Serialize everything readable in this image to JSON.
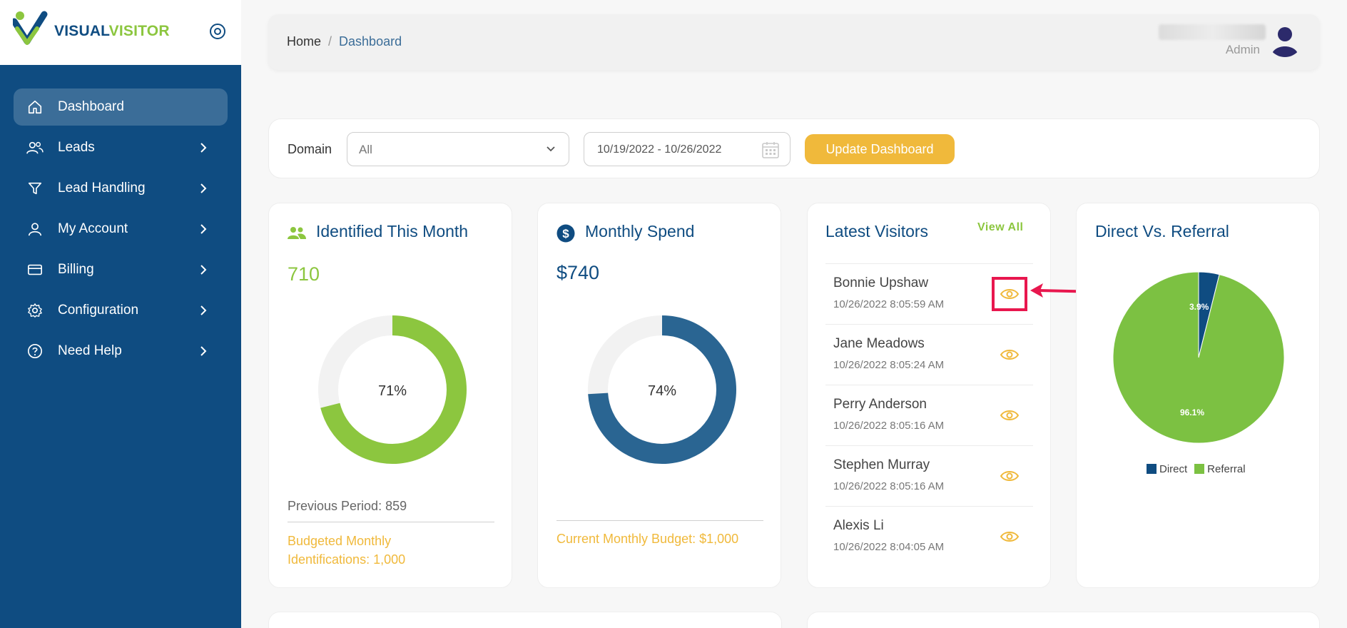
{
  "brand": {
    "name_part1": "VISUAL",
    "name_part2": "VISITOR"
  },
  "sidebar": {
    "items": [
      {
        "label": "Dashboard",
        "icon": "home-icon"
      },
      {
        "label": "Leads",
        "icon": "users-icon"
      },
      {
        "label": "Lead Handling",
        "icon": "filter-icon"
      },
      {
        "label": "My Account",
        "icon": "user-icon"
      },
      {
        "label": "Billing",
        "icon": "card-icon"
      },
      {
        "label": "Configuration",
        "icon": "gear-icon"
      },
      {
        "label": "Need Help",
        "icon": "help-icon"
      }
    ]
  },
  "header": {
    "breadcrumb_home": "Home",
    "breadcrumb_sep": "/",
    "breadcrumb_current": "Dashboard",
    "user_role": "Admin"
  },
  "filters": {
    "domain_label": "Domain",
    "domain_value": "All",
    "date_range": "10/19/2022 - 10/26/2022",
    "update_button": "Update Dashboard"
  },
  "identified": {
    "title": "Identified This Month",
    "value": "710",
    "percent_label": "71%",
    "percent": 0.71,
    "previous": "Previous Period: 859",
    "budget": "Budgeted Monthly Identifications: 1,000"
  },
  "spend": {
    "title": "Monthly Spend",
    "value": "$740",
    "percent_label": "74%",
    "percent": 0.74,
    "budget": "Current Monthly Budget: $1,000"
  },
  "visitors": {
    "title": "Latest Visitors",
    "view_all": "View All",
    "rows": [
      {
        "name": "Bonnie Upshaw",
        "time": "10/26/2022 8:05:59 AM"
      },
      {
        "name": "Jane Meadows",
        "time": "10/26/2022 8:05:24 AM"
      },
      {
        "name": "Perry Anderson",
        "time": "10/26/2022 8:05:16 AM"
      },
      {
        "name": "Stephen Murray",
        "time": "10/26/2022 8:05:16 AM"
      },
      {
        "name": "Alexis Li",
        "time": "10/26/2022 8:04:05 AM"
      }
    ]
  },
  "referral": {
    "title": "Direct Vs. Referral",
    "direct_label": "3.9%",
    "referral_label": "96.1%",
    "legend_direct": "Direct",
    "legend_referral": "Referral"
  },
  "chart_data": {
    "type": "pie",
    "title": "Direct Vs. Referral",
    "categories": [
      "Direct",
      "Referral"
    ],
    "values": [
      3.9,
      96.1
    ],
    "colors": [
      "#0f4c81",
      "#7cc142"
    ],
    "legend": "bottom"
  },
  "colors": {
    "sidebar": "#0f4c81",
    "accent_green": "#8cc63f",
    "accent_yellow": "#f0b93b",
    "highlight": "#e8174e"
  }
}
